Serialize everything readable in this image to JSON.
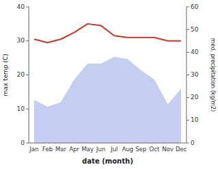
{
  "chart_data": {
    "type": "line",
    "xlabel": "date (month)",
    "ylabel": "max temp (C)",
    "y2label": "med. precipitation (kg/m2)",
    "categories": [
      "Jan",
      "Feb",
      "Mar",
      "Apr",
      "May",
      "Jun",
      "Jul",
      "Aug",
      "Sep",
      "Oct",
      "Nov",
      "Dec"
    ],
    "series": [
      {
        "type": "area",
        "axis": "y2",
        "color": "#c5cef0",
        "values": [
          19,
          16,
          18,
          28,
          35,
          35,
          38,
          37,
          32,
          28,
          17,
          24
        ]
      },
      {
        "type": "line",
        "color": "#c0392b",
        "values": [
          30.5,
          29.5,
          30.5,
          32.5,
          35.0,
          34.5,
          31.5,
          31.0,
          31.0,
          31.0,
          30.0,
          30.0
        ]
      }
    ],
    "ylim": [
      0,
      40
    ],
    "yticks": [
      0,
      10,
      20,
      30,
      40
    ],
    "y2lim": [
      0,
      60
    ],
    "y2ticks": [
      0,
      10,
      20,
      30,
      40,
      50,
      60
    ],
    "grid": false
  }
}
